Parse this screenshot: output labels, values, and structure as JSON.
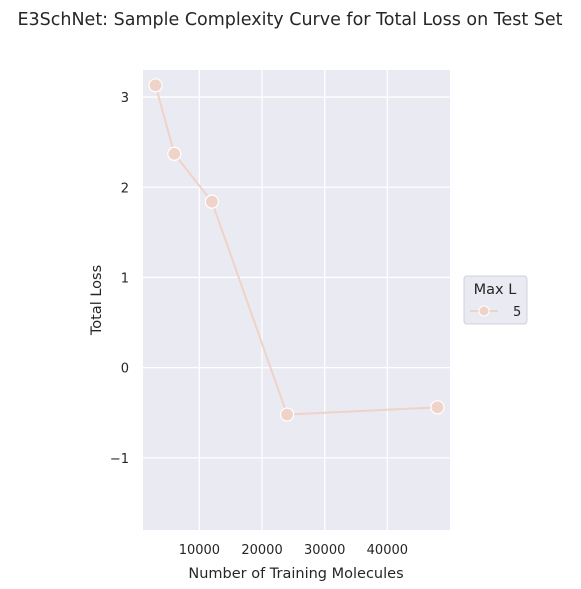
{
  "chart_data": {
    "type": "line",
    "title": "E3SchNet: Sample Complexity Curve for Total Loss on Test Set",
    "xlabel": "Number of Training Molecules",
    "ylabel": "Total Loss",
    "xlim": [
      1000,
      50000
    ],
    "ylim": [
      -1.8,
      3.3
    ],
    "x_ticks": [
      10000,
      20000,
      30000,
      40000
    ],
    "y_ticks": [
      -1,
      0,
      1,
      2,
      3
    ],
    "grid": true,
    "legend": {
      "title": "Max L",
      "placement": "right",
      "entries": [
        "5"
      ]
    },
    "series": [
      {
        "name": "5",
        "color": "#efd3c9",
        "x": [
          3000,
          6000,
          12000,
          24000,
          48000
        ],
        "y": [
          3.13,
          2.37,
          1.84,
          -0.52,
          -0.44
        ]
      }
    ],
    "background_color": "#eaeaf2",
    "grid_color": "#ffffff"
  }
}
